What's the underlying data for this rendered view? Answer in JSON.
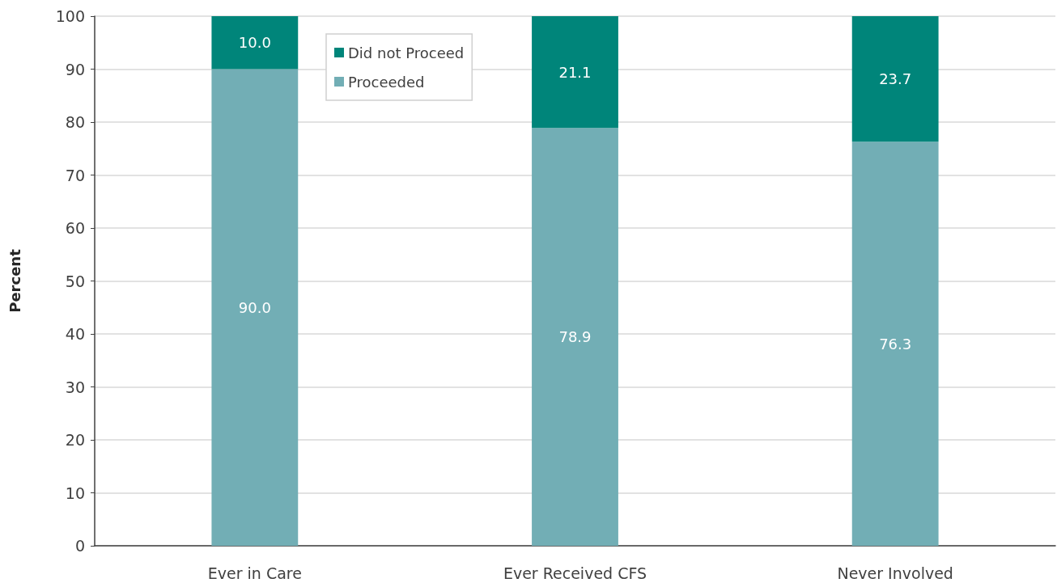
{
  "chart_data": {
    "type": "bar",
    "stacked": true,
    "categories": [
      "Ever in Care",
      "Ever Received CFS",
      "Never Involved"
    ],
    "series": [
      {
        "name": "Proceeded",
        "color": "#72aeb5",
        "values": [
          90.0,
          78.9,
          76.3
        ],
        "value_labels": [
          "90.0",
          "78.9",
          "76.3"
        ]
      },
      {
        "name": "Did not Proceed",
        "color": "#00857a",
        "values": [
          10.0,
          21.1,
          23.7
        ],
        "value_labels": [
          "10.0",
          "21.1",
          "23.7"
        ]
      }
    ],
    "ylabel": "Percent",
    "ylim": [
      0,
      100
    ],
    "yticks": [
      0,
      10,
      20,
      30,
      40,
      50,
      60,
      70,
      80,
      90,
      100
    ],
    "grid": "y",
    "legend": "top left"
  }
}
